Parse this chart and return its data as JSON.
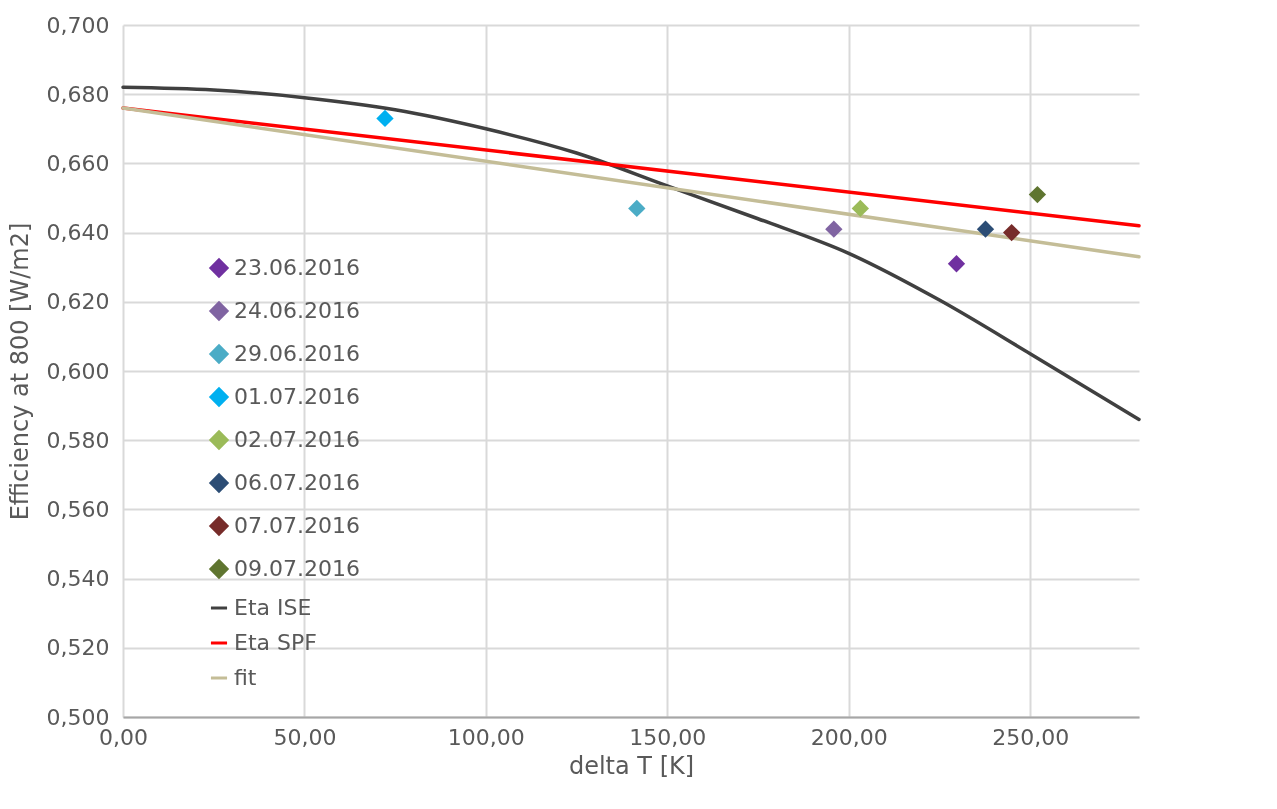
{
  "chart_data": {
    "type": "scatter",
    "xlabel": "delta T [K]",
    "ylabel": "Efficiency at 800 [W/m2]",
    "xlim": [
      0,
      280
    ],
    "ylim": [
      0.5,
      0.7
    ],
    "xticks": [
      {
        "value": 0,
        "label": "0,00"
      },
      {
        "value": 50,
        "label": "50,00"
      },
      {
        "value": 100,
        "label": "100,00"
      },
      {
        "value": 150,
        "label": "150,00"
      },
      {
        "value": 200,
        "label": "200,00"
      },
      {
        "value": 250,
        "label": "250,00"
      }
    ],
    "yticks": [
      {
        "value": 0.5,
        "label": "0,500"
      },
      {
        "value": 0.52,
        "label": "0,520"
      },
      {
        "value": 0.54,
        "label": "0,540"
      },
      {
        "value": 0.56,
        "label": "0,560"
      },
      {
        "value": 0.58,
        "label": "0,580"
      },
      {
        "value": 0.6,
        "label": "0,600"
      },
      {
        "value": 0.62,
        "label": "0,620"
      },
      {
        "value": 0.64,
        "label": "0,640"
      },
      {
        "value": 0.66,
        "label": "0,660"
      },
      {
        "value": 0.68,
        "label": "0,680"
      },
      {
        "value": 0.7,
        "label": "0,700"
      }
    ],
    "grid": true,
    "legend": "left",
    "series": [
      {
        "name": "23.06.2016",
        "marker": "diamond",
        "color": "#7030a0",
        "x": [
          229.7
        ],
        "values": [
          0.631
        ]
      },
      {
        "name": "24.06.2016",
        "marker": "diamond",
        "color": "#8064a2",
        "x": [
          195.9
        ],
        "values": [
          0.641
        ]
      },
      {
        "name": "29.06.2016",
        "marker": "diamond",
        "color": "#4bacc6",
        "x": [
          141.6
        ],
        "values": [
          0.647
        ]
      },
      {
        "name": "01.07.2016",
        "marker": "diamond",
        "color": "#00b0f0",
        "x": [
          72.2
        ],
        "values": [
          0.673
        ]
      },
      {
        "name": "02.07.2016",
        "marker": "diamond",
        "color": "#9bbb59",
        "x": [
          203.2
        ],
        "values": [
          0.647
        ]
      },
      {
        "name": "06.07.2016",
        "marker": "diamond",
        "color": "#2c4d75",
        "x": [
          237.7
        ],
        "values": [
          0.641
        ]
      },
      {
        "name": "07.07.2016",
        "marker": "diamond",
        "color": "#772c2a",
        "x": [
          244.9
        ],
        "values": [
          0.64
        ]
      },
      {
        "name": "09.07.2016",
        "marker": "diamond",
        "color": "#5f7530",
        "x": [
          252.0
        ],
        "values": [
          0.651
        ]
      },
      {
        "name": "Eta ISE",
        "type": "line",
        "marker": "none",
        "color": "#404040",
        "x": [
          0,
          25,
          50,
          75,
          100,
          125,
          150,
          175,
          200,
          225,
          250,
          280
        ],
        "values": [
          0.682,
          0.6812,
          0.679,
          0.6755,
          0.67,
          0.663,
          0.6535,
          0.644,
          0.634,
          0.6205,
          0.605,
          0.586
        ]
      },
      {
        "name": "Eta SPF",
        "type": "line",
        "marker": "none",
        "color": "#ff0000",
        "x": [
          0,
          280
        ],
        "values": [
          0.676,
          0.642
        ]
      },
      {
        "name": "fit",
        "type": "line",
        "marker": "none",
        "color": "#c4bd97",
        "x": [
          0,
          280
        ],
        "values": [
          0.676,
          0.633
        ]
      }
    ]
  }
}
